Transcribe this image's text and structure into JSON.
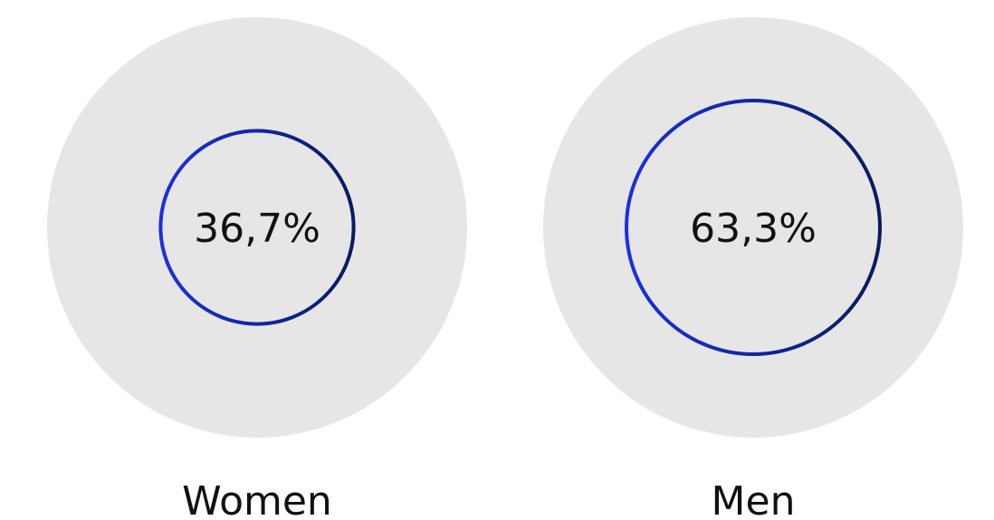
{
  "chart_data": {
    "type": "proportional-circle",
    "unit": "%",
    "max_value": 100,
    "categories": [
      "Women",
      "Men"
    ],
    "values": [
      36.7,
      63.3
    ],
    "value_labels": [
      "36,7%",
      "63,3%"
    ]
  },
  "colors": {
    "background_circle": "#e6e6e7",
    "ring_start": "#1c2fe0",
    "ring_end": "#0a1b5e",
    "text": "#111111"
  }
}
